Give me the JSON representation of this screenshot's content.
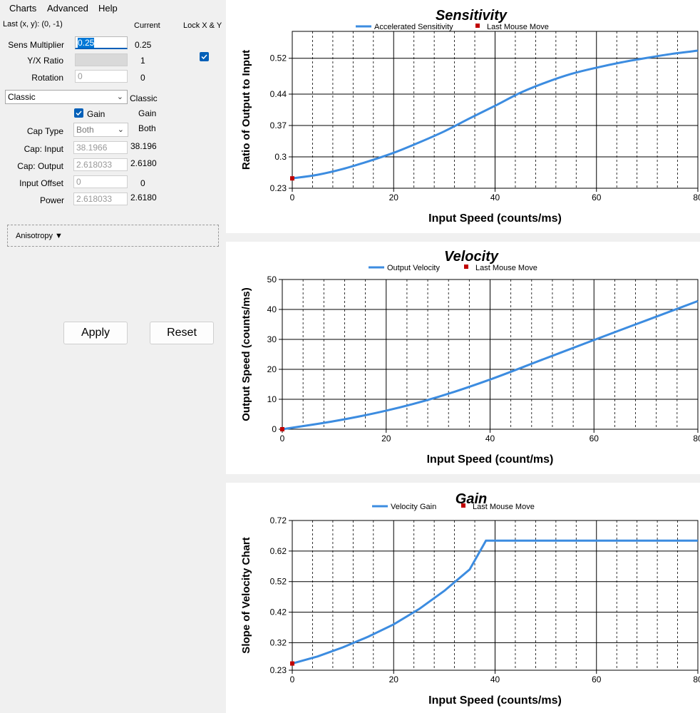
{
  "menu": [
    "Charts",
    "Advanced",
    "Help"
  ],
  "header": {
    "last_xy": "Last (x, y): (0, -1)",
    "current_label": "Current",
    "lock_label": "Lock X & Y"
  },
  "fields": {
    "sens_multiplier": {
      "label": "Sens Multiplier",
      "value": "0.25",
      "current": "0.25"
    },
    "yx_ratio": {
      "label": "Y/X Ratio",
      "value": "",
      "current": "1"
    },
    "rotation": {
      "label": "Rotation",
      "value": "0",
      "current": "0"
    },
    "accel_type": {
      "value": "Classic",
      "current": "Classic"
    },
    "gain": {
      "label": "Gain",
      "current": "Gain"
    },
    "cap_type": {
      "label": "Cap Type",
      "value": "Both",
      "current": "Both"
    },
    "cap_input": {
      "label": "Cap: Input",
      "value": "38.1966",
      "current": "38.196"
    },
    "cap_output": {
      "label": "Cap: Output",
      "value": "2.618033",
      "current": "2.6180"
    },
    "input_offset": {
      "label": "Input Offset",
      "value": "0",
      "current": "0"
    },
    "power": {
      "label": "Power",
      "value": "2.618033",
      "current": "2.6180"
    }
  },
  "anisotropy_label": "Anisotropy ▼",
  "buttons": {
    "apply": "Apply",
    "reset": "Reset"
  },
  "colors": {
    "series": "#3c8ce0",
    "marker": "#c00000",
    "accent": "#005fb8"
  },
  "chart_data": [
    {
      "type": "line",
      "title": "Sensitivity",
      "xlabel": "Input Speed (counts/ms)",
      "ylabel": "Ratio of Output to Input",
      "legend": [
        "Accelerated Sensitivity",
        "Last Mouse Move"
      ],
      "xlim": [
        0,
        80
      ],
      "ylim": [
        0.23,
        0.58
      ],
      "x_ticks": [
        "0",
        "20",
        "40",
        "60",
        "80"
      ],
      "y_ticks": [
        {
          "v": 0.23,
          "t": "0.23"
        },
        {
          "v": 0.3,
          "t": "0.3"
        },
        {
          "v": 0.37,
          "t": "0.37"
        },
        {
          "v": 0.44,
          "t": "0.44"
        },
        {
          "v": 0.52,
          "t": "0.52"
        }
      ],
      "series": [
        {
          "name": "Accelerated Sensitivity",
          "x": [
            0,
            5,
            10,
            15,
            20,
            25,
            30,
            35,
            40,
            45,
            50,
            55,
            60,
            65,
            70,
            75,
            80
          ],
          "y": [
            0.252,
            0.26,
            0.273,
            0.29,
            0.309,
            0.332,
            0.357,
            0.386,
            0.414,
            0.443,
            0.466,
            0.485,
            0.499,
            0.511,
            0.521,
            0.53,
            0.537
          ]
        }
      ],
      "last_move": [
        0,
        0.252
      ]
    },
    {
      "type": "line",
      "title": "Velocity",
      "xlabel": "Input Speed (count/ms)",
      "ylabel": "Output Speed (counts/ms)",
      "legend": [
        "Output Velocity",
        "Last Mouse Move"
      ],
      "xlim": [
        0,
        80
      ],
      "ylim": [
        0,
        50
      ],
      "x_ticks": [
        "0",
        "20",
        "40",
        "60",
        "80"
      ],
      "y_ticks": [
        {
          "v": 0,
          "t": "0"
        },
        {
          "v": 10,
          "t": "10"
        },
        {
          "v": 20,
          "t": "20"
        },
        {
          "v": 30,
          "t": "30"
        },
        {
          "v": 40,
          "t": "40"
        },
        {
          "v": 50,
          "t": "50"
        }
      ],
      "series": [
        {
          "name": "Output Velocity",
          "x": [
            0,
            10,
            20,
            30,
            40,
            50,
            60,
            70,
            80
          ],
          "y": [
            0,
            2.7,
            6.2,
            10.8,
            16.6,
            23.2,
            29.8,
            36.3,
            42.8
          ]
        }
      ],
      "last_move": [
        0,
        0
      ]
    },
    {
      "type": "line",
      "title": "Gain",
      "xlabel": "Input Speed (counts/ms)",
      "ylabel": "Slope of Velocity Chart",
      "legend": [
        "Velocity Gain",
        "Last Mouse Move"
      ],
      "xlim": [
        0,
        80
      ],
      "ylim": [
        0.23,
        0.72
      ],
      "x_ticks": [
        "0",
        "20",
        "40",
        "60",
        "80"
      ],
      "y_ticks": [
        {
          "v": 0.23,
          "t": "0.23"
        },
        {
          "v": 0.32,
          "t": "0.32"
        },
        {
          "v": 0.42,
          "t": "0.42"
        },
        {
          "v": 0.52,
          "t": "0.52"
        },
        {
          "v": 0.62,
          "t": "0.62"
        },
        {
          "v": 0.72,
          "t": "0.72"
        }
      ],
      "series": [
        {
          "name": "Velocity Gain",
          "x": [
            0,
            5,
            10,
            15,
            20,
            25,
            30,
            35,
            38.2,
            40,
            50,
            60,
            70,
            80
          ],
          "y": [
            0.252,
            0.275,
            0.305,
            0.34,
            0.38,
            0.43,
            0.49,
            0.56,
            0.654,
            0.654,
            0.654,
            0.654,
            0.654,
            0.654
          ]
        }
      ],
      "last_move": [
        0,
        0.252
      ]
    }
  ]
}
